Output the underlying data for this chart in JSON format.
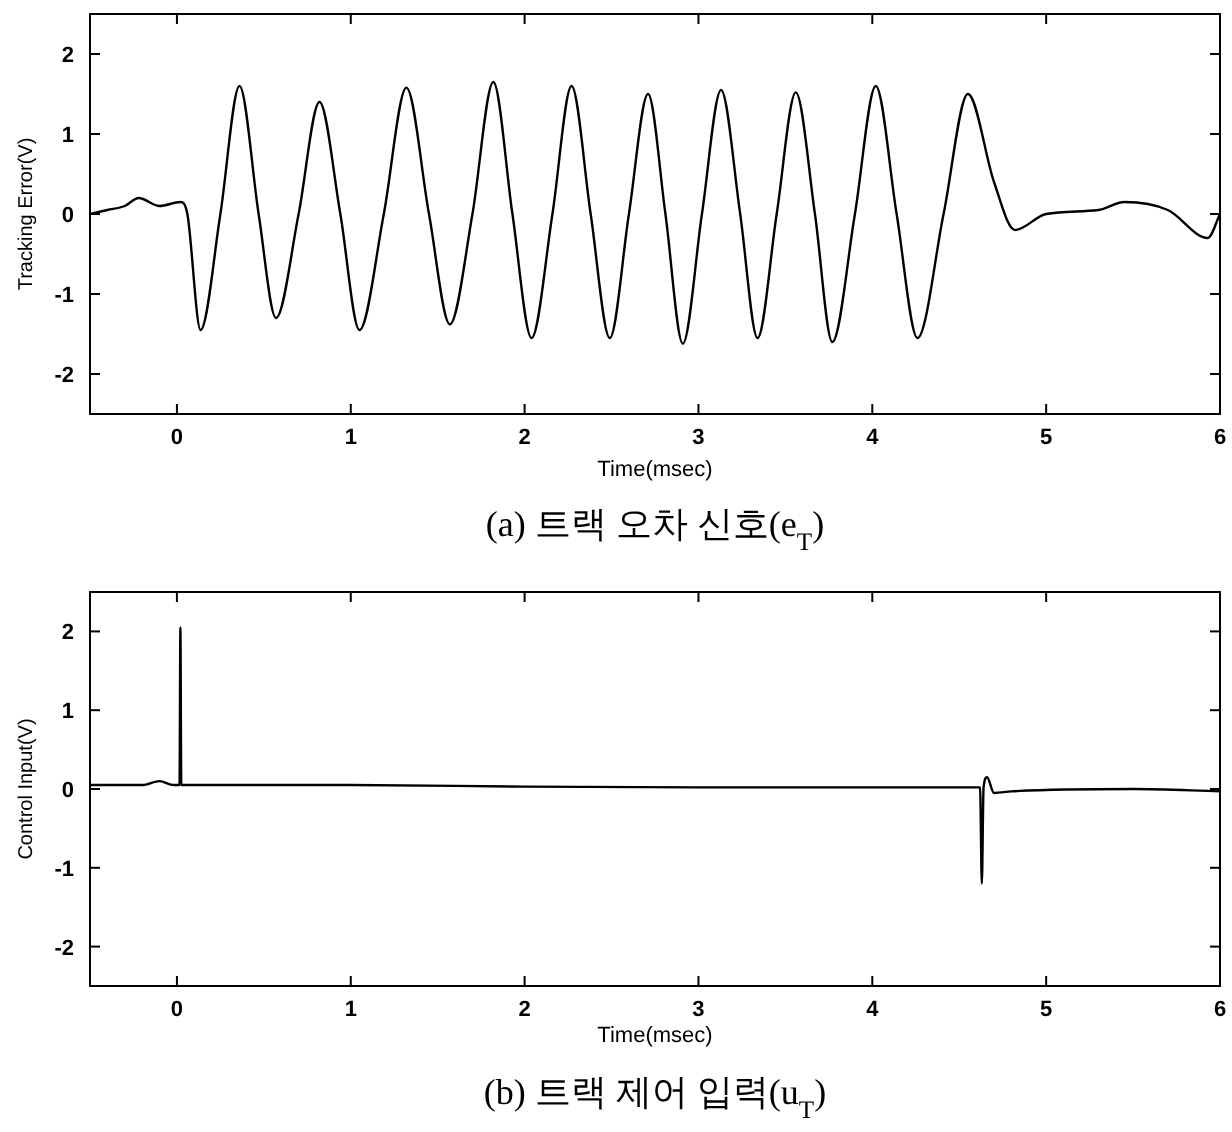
{
  "chart_data": [
    {
      "type": "line",
      "title": "(a) 트랙 오차 신호(e$_{T}$)",
      "xlabel": "Time(msec)",
      "ylabel": "Tracking Error(V)",
      "xlim": [
        -0.5,
        6
      ],
      "ylim": [
        -2.5,
        2.5
      ],
      "xticks": [
        0,
        1,
        2,
        3,
        4,
        5,
        6
      ],
      "yticks": [
        -2,
        -1,
        0,
        1,
        2
      ],
      "grid": false,
      "marker": "none",
      "line_style": "solid",
      "series": [
        {
          "color": "#000000",
          "x": [
            -0.5,
            -0.4,
            -0.3,
            -0.22,
            -0.1,
            0.02,
            0.06,
            0.136,
            0.25,
            0.36,
            0.47,
            0.57,
            0.7,
            0.82,
            0.94,
            1.05,
            1.19,
            1.32,
            1.45,
            1.57,
            1.7,
            1.82,
            1.93,
            2.04,
            2.16,
            2.27,
            2.38,
            2.49,
            2.6,
            2.71,
            2.81,
            2.91,
            3.02,
            3.13,
            3.24,
            3.34,
            3.45,
            3.56,
            3.67,
            3.77,
            3.9,
            4.02,
            4.14,
            4.26,
            4.41,
            4.55,
            4.7,
            4.82,
            5.0,
            5.3,
            5.45,
            5.7,
            5.93,
            6.0
          ],
          "values": [
            0.0,
            0.05,
            0.1,
            0.2,
            0.1,
            0.15,
            0.0,
            -1.45,
            0.0,
            1.6,
            0.0,
            -1.3,
            0.0,
            1.4,
            0.0,
            -1.45,
            0.0,
            1.58,
            0.0,
            -1.38,
            0.0,
            1.65,
            0.0,
            -1.55,
            0.0,
            1.6,
            0.0,
            -1.55,
            0.0,
            1.5,
            0.0,
            -1.62,
            0.0,
            1.55,
            0.0,
            -1.55,
            0.0,
            1.52,
            0.0,
            -1.6,
            0.0,
            1.6,
            0.0,
            -1.55,
            0.0,
            1.5,
            0.4,
            -0.2,
            0.0,
            0.05,
            0.15,
            0.05,
            -0.3,
            0.0
          ]
        }
      ]
    },
    {
      "type": "line",
      "title": "(b) 트랙 제어 입력(u$_{T}$)",
      "xlabel": "Time(msec)",
      "ylabel": "Control Input(V)",
      "xlim": [
        -0.5,
        6
      ],
      "ylim": [
        -2.5,
        2.5
      ],
      "xticks": [
        0,
        1,
        2,
        3,
        4,
        5,
        6
      ],
      "yticks": [
        -2,
        -1,
        0,
        1,
        2
      ],
      "grid": false,
      "marker": "none",
      "line_style": "solid",
      "series": [
        {
          "color": "#000000",
          "x": [
            -0.5,
            -0.2,
            -0.1,
            -0.02,
            0.015,
            0.02,
            0.025,
            1,
            2,
            3,
            4,
            4.62,
            4.63,
            4.64,
            4.66,
            4.7,
            4.8,
            5.5,
            6.0
          ],
          "values": [
            0.05,
            0.05,
            0.1,
            0.05,
            0.05,
            2.05,
            0.05,
            0.05,
            0.03,
            0.02,
            0.02,
            0.02,
            -1.2,
            0.02,
            0.15,
            -0.05,
            -0.03,
            0.0,
            -0.03
          ]
        }
      ]
    }
  ]
}
